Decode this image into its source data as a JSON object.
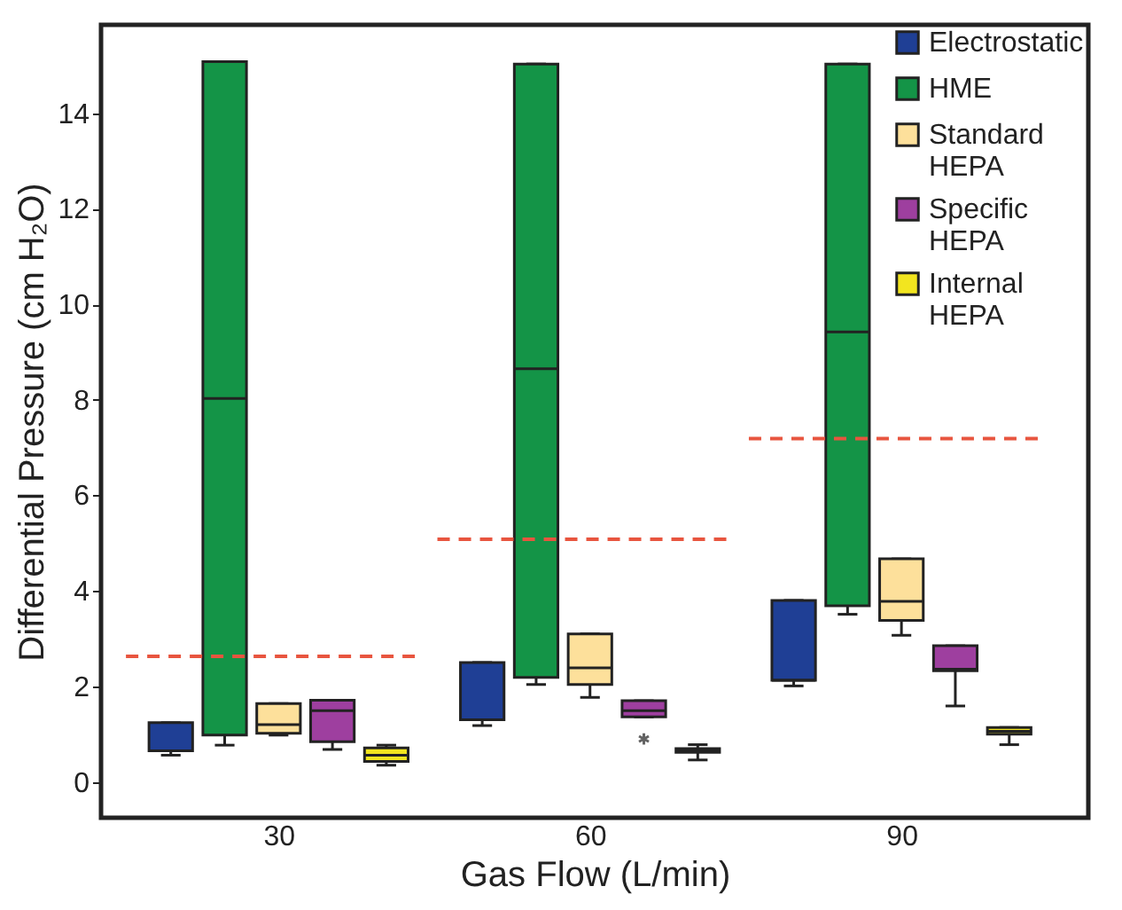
{
  "chart_data": {
    "type": "box",
    "xlabel": "Gas Flow (L/min)",
    "ylabel": "Differential Pressure (cm H₂O)",
    "categories": [
      "30",
      "60",
      "90"
    ],
    "ylim": [
      -0.75,
      15.85
    ],
    "yticks": [
      0,
      2,
      4,
      6,
      8,
      10,
      12,
      14
    ],
    "grid": false,
    "legend": "top right",
    "series": [
      {
        "name": "Electrostatic",
        "color": "#1f3f95",
        "boxes": [
          {
            "low": 0.56,
            "q1": 0.65,
            "median": 0.65,
            "q3": 1.24,
            "high": 1.24
          },
          {
            "low": 1.18,
            "q1": 1.3,
            "median": 1.3,
            "q3": 2.5,
            "high": 2.5
          },
          {
            "low": 2.01,
            "q1": 2.13,
            "median": 2.13,
            "q3": 3.8,
            "high": 3.8
          }
        ]
      },
      {
        "name": "HME",
        "color": "#149447",
        "boxes": [
          {
            "low": 0.77,
            "q1": 0.98,
            "median": 8.03,
            "q3": 15.08,
            "high": 15.08
          },
          {
            "low": 2.04,
            "q1": 2.19,
            "median": 8.65,
            "q3": 15.03,
            "high": 15.03
          },
          {
            "low": 3.51,
            "q1": 3.69,
            "median": 9.42,
            "q3": 15.03,
            "high": 15.03
          }
        ]
      },
      {
        "name": "Standard HEPA",
        "color": "#fde09b",
        "boxes": [
          {
            "low": 0.98,
            "q1": 1.02,
            "median": 1.2,
            "q3": 1.64,
            "high": 1.64
          },
          {
            "low": 1.77,
            "q1": 2.04,
            "median": 2.39,
            "q3": 3.1,
            "high": 3.1
          },
          {
            "low": 3.07,
            "q1": 3.38,
            "median": 3.78,
            "q3": 4.67,
            "high": 4.67
          }
        ]
      },
      {
        "name": "Specific HEPA",
        "color": "#9e3f9f",
        "boxes": [
          {
            "low": 0.68,
            "q1": 0.84,
            "median": 1.49,
            "q3": 1.71,
            "high": 1.71
          },
          {
            "low": 1.36,
            "q1": 1.36,
            "median": 1.49,
            "q3": 1.7,
            "high": 1.7,
            "outliers": [
              0.9
            ]
          },
          {
            "low": 1.59,
            "q1": 2.33,
            "median": 2.36,
            "q3": 2.85,
            "high": 2.85
          }
        ]
      },
      {
        "name": "Internal HEPA",
        "color": "#f2e51f",
        "boxes": [
          {
            "low": 0.35,
            "q1": 0.43,
            "median": 0.56,
            "q3": 0.71,
            "high": 0.77
          },
          {
            "low": 0.46,
            "q1": 0.62,
            "median": 0.66,
            "q3": 0.7,
            "high": 0.78
          },
          {
            "low": 0.78,
            "q1": 1.0,
            "median": 1.06,
            "q3": 1.14,
            "high": 1.14
          }
        ]
      }
    ],
    "ref_lines": [
      {
        "axis": "y",
        "value": 2.63,
        "color": "#e8553f",
        "line_style": "dashed"
      },
      {
        "axis": "y",
        "value": 5.08,
        "color": "#e8553f",
        "line_style": "dashed"
      },
      {
        "axis": "y",
        "value": 7.19,
        "color": "#e8553f",
        "line_style": "dashed"
      }
    ]
  }
}
